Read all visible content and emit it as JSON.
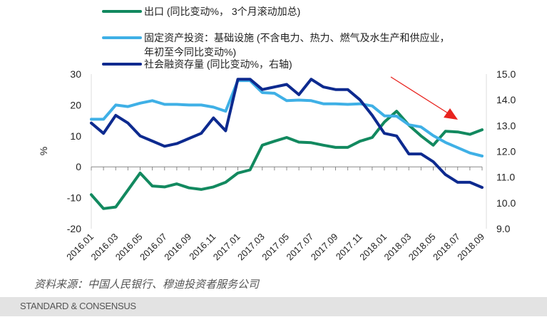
{
  "chart_data": {
    "type": "line",
    "title": "",
    "ylabel": "%",
    "ylim": [
      -20,
      30
    ],
    "yticks": [
      "30",
      "20",
      "10",
      "0",
      "-10",
      "-20"
    ],
    "y2lim": [
      9.0,
      15.0
    ],
    "y2ticks": [
      "15.0",
      "14.0",
      "13.0",
      "12.0",
      "11.0",
      "10.0",
      "9.0"
    ],
    "x": [
      "2016.01",
      "2016.02",
      "2016.03",
      "2016.04",
      "2016.05",
      "2016.06",
      "2016.07",
      "2016.08",
      "2016.09",
      "2016.10",
      "2016.11",
      "2016.12",
      "2017.01",
      "2017.02",
      "2017.03",
      "2017.04",
      "2017.05",
      "2017.06",
      "2017.07",
      "2017.08",
      "2017.09",
      "2017.10",
      "2017.11",
      "2017.12",
      "2018.01",
      "2018.02",
      "2018.03",
      "2018.04",
      "2018.05",
      "2018.06",
      "2018.07",
      "2018.08",
      "2018.09"
    ],
    "xticks": [
      "2016.01",
      "2016.03",
      "2016.05",
      "2016.07",
      "2016.09",
      "2016.11",
      "2017.01",
      "2017.03",
      "2017.05",
      "2017.07",
      "2017.09",
      "2017.11",
      "2018.01",
      "2018.03",
      "2018.05",
      "2018.07",
      "2018.09"
    ],
    "grid": false,
    "legend_placement": "top",
    "series": [
      {
        "name": "出口 (同比变动%， 3个月滚动加总)",
        "axis": "left",
        "color": "#12895f",
        "values": [
          -9,
          -13.5,
          -13,
          -7.5,
          -2,
          -6.2,
          -6.5,
          -5.5,
          -6.8,
          -7.3,
          -6.5,
          -5,
          -2,
          -1,
          7,
          8.3,
          9.5,
          8,
          7.8,
          7,
          6.3,
          6.3,
          8.3,
          9.5,
          14.5,
          18,
          13.5,
          10,
          7,
          11.5,
          11.3,
          10.5,
          12
        ]
      },
      {
        "name": "固定资产投资：基础设施 (不含电力、热力、燃气及水生产和供应业，年初至今同比变动%)",
        "name_line1": "固定资产投资：基础设施 (不含电力、热力、燃气及水生产和供应业，",
        "name_line2": "年初至今同比变动%)",
        "axis": "left",
        "color": "#3fb0e6",
        "values": [
          15.4,
          15.4,
          20,
          19.5,
          20.6,
          21.4,
          20.2,
          20.2,
          20,
          20,
          19.3,
          18,
          27.9,
          27.9,
          24,
          23.8,
          21.4,
          21.6,
          21.4,
          20.4,
          20.4,
          20.2,
          20.4,
          19.7,
          16.5,
          16.4,
          13.6,
          12.9,
          10.1,
          7.9,
          6.2,
          4.5,
          3.5
        ]
      },
      {
        "name": "社会融资存量 (同比变动%，右轴)",
        "axis": "right",
        "color": "#0d2a8f",
        "values": [
          13.1,
          12.7,
          13.4,
          13.1,
          12.6,
          12.4,
          12.2,
          12.3,
          12.5,
          12.7,
          13.3,
          12.8,
          14.8,
          14.8,
          14.4,
          14.5,
          14.6,
          14.2,
          14.8,
          14.5,
          14.4,
          14.4,
          14.0,
          13.4,
          12.7,
          12.6,
          11.9,
          11.9,
          11.6,
          11.1,
          10.8,
          10.8,
          10.6
        ]
      }
    ],
    "annotations": [
      {
        "type": "arrow",
        "color": "#e8231e",
        "from": "2017.12",
        "to": "2018.07",
        "meaning": "downtrend"
      }
    ]
  },
  "source": "资料来源：中国人民银行、穆迪投资者服务公司",
  "brand": "STANDARD & CONSENSUS"
}
